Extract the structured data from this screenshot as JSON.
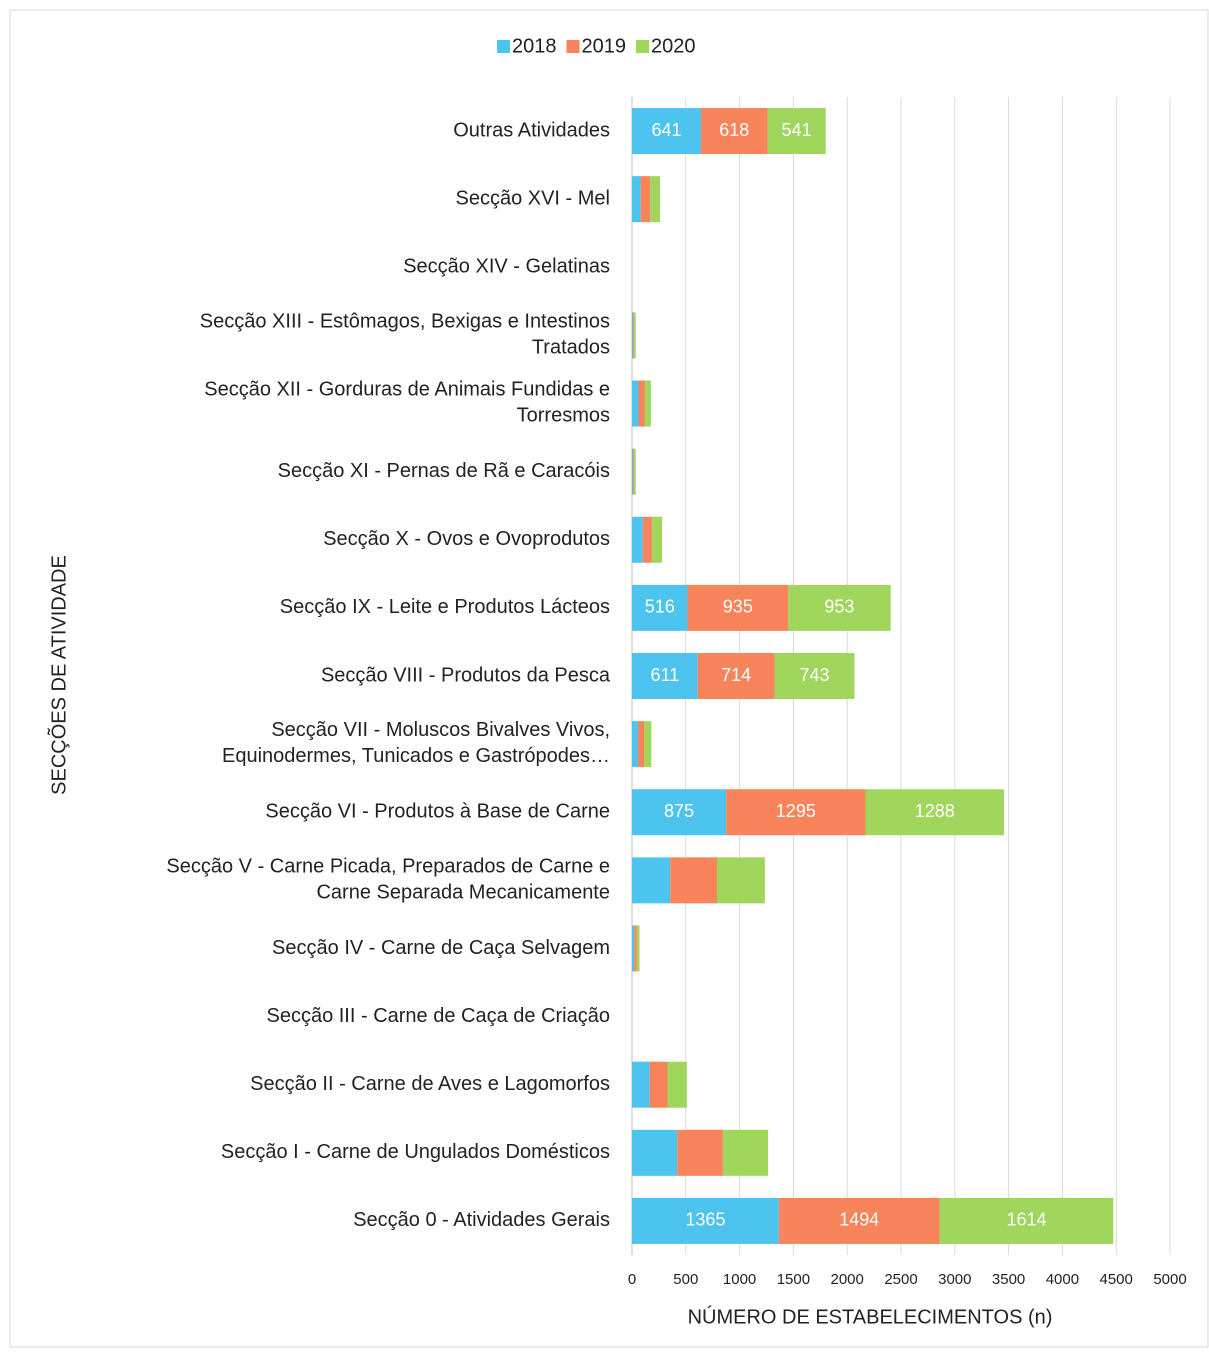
{
  "chart_data": {
    "type": "bar",
    "orientation": "horizontal",
    "stacked": true,
    "xlabel": "NÚMERO DE ESTABELECIMENTOS (n)",
    "ylabel": "SECÇÕES DE ATIVIDADE",
    "categories": [
      "Outras Atividades",
      "Secção XVI - Mel",
      "Secção XIV - Gelatinas",
      "Secção XIII - Estômagos, Bexigas e Intestinos\nTratados",
      "Secção XII - Gorduras de  Animais Fundidas e\nTorresmos",
      "Secção XI - Pernas de Rã e Caracóis",
      "Secção X - Ovos e Ovoprodutos",
      "Secção IX - Leite e Produtos Lácteos",
      "Secção VIII  - Produtos da Pesca",
      "Secção VII - Moluscos Bivalves Vivos,\nEquinodermes, Tunicados e Gastrópodes…",
      "Secção VI - Produtos à Base de Carne",
      "Secção V - Carne Picada, Preparados de Carne e\nCarne Separada Mecanicamente",
      "Secção IV - Carne de Caça Selvagem",
      "Secção III - Carne de Caça de Criação",
      "Secção II - Carne de Aves e Lagomorfos",
      "Secção I - Carne de Ungulados Domésticos",
      "Secção 0 - Atividades Gerais"
    ],
    "series": [
      {
        "name": "2018",
        "color": "#4dc3f0",
        "values": [
          641,
          80,
          0,
          10,
          60,
          10,
          100,
          516,
          611,
          55,
          875,
          355,
          20,
          0,
          165,
          420,
          1365
        ]
      },
      {
        "name": "2019",
        "color": "#f7845a",
        "values": [
          618,
          90,
          0,
          10,
          60,
          10,
          85,
          935,
          714,
          60,
          1295,
          435,
          25,
          0,
          165,
          425,
          1494
        ]
      },
      {
        "name": "2020",
        "color": "#9fd65b",
        "values": [
          541,
          90,
          0,
          15,
          55,
          15,
          95,
          953,
          743,
          65,
          1288,
          445,
          25,
          0,
          180,
          420,
          1614
        ]
      }
    ],
    "xlim": [
      0,
      5000
    ],
    "xticks": [
      0,
      500,
      1000,
      1500,
      2000,
      2500,
      3000,
      3500,
      4000,
      4500,
      5000
    ],
    "grid": true,
    "legend": "top"
  }
}
